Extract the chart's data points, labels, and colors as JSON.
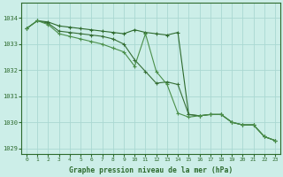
{
  "hours": [
    0,
    1,
    2,
    3,
    4,
    5,
    6,
    7,
    8,
    9,
    10,
    11,
    12,
    13,
    14,
    15,
    16,
    17,
    18,
    19,
    20,
    21,
    22,
    23
  ],
  "line1": [
    1033.6,
    1033.9,
    1033.85,
    1033.7,
    1033.65,
    1033.6,
    1033.55,
    1033.5,
    1033.45,
    1033.4,
    1033.55,
    1033.45,
    1033.4,
    1033.35,
    1033.45,
    1030.3,
    1030.25,
    1030.3,
    1030.3,
    1030.0,
    1029.9,
    1029.9,
    1029.45,
    1029.3
  ],
  "line2": [
    1033.6,
    1033.9,
    1033.8,
    1033.5,
    1033.45,
    1033.4,
    1033.35,
    1033.3,
    1033.2,
    1033.1,
    1032.5,
    1032.0,
    1031.5,
    1031.55,
    1031.5,
    1030.3,
    1030.25,
    1030.3,
    1030.3,
    1030.0,
    1029.9,
    1029.9,
    1029.45,
    1029.3
  ],
  "line3": [
    1033.6,
    1033.9,
    1033.8,
    1033.5,
    1033.4,
    1033.35,
    1033.3,
    1033.2,
    1033.1,
    1032.9,
    1032.2,
    1033.45,
    1032.1,
    1031.5,
    1030.35,
    1030.25,
    1030.3,
    1030.3,
    1030.3,
    1030.0,
    1029.9,
    1029.9,
    1029.45,
    1029.3
  ],
  "line_color1": "#2d6a2d",
  "line_color2": "#356e35",
  "line_color3": "#4a8f4a",
  "bg_color": "#cceee8",
  "grid_color": "#aad8d2",
  "axis_color": "#2d6a2d",
  "text_color": "#2d6a2d",
  "xlabel": "Graphe pression niveau de la mer (hPa)",
  "ylim_min": 1028.8,
  "ylim_max": 1034.6,
  "yticks": [
    1029,
    1030,
    1031,
    1032,
    1033,
    1034
  ]
}
